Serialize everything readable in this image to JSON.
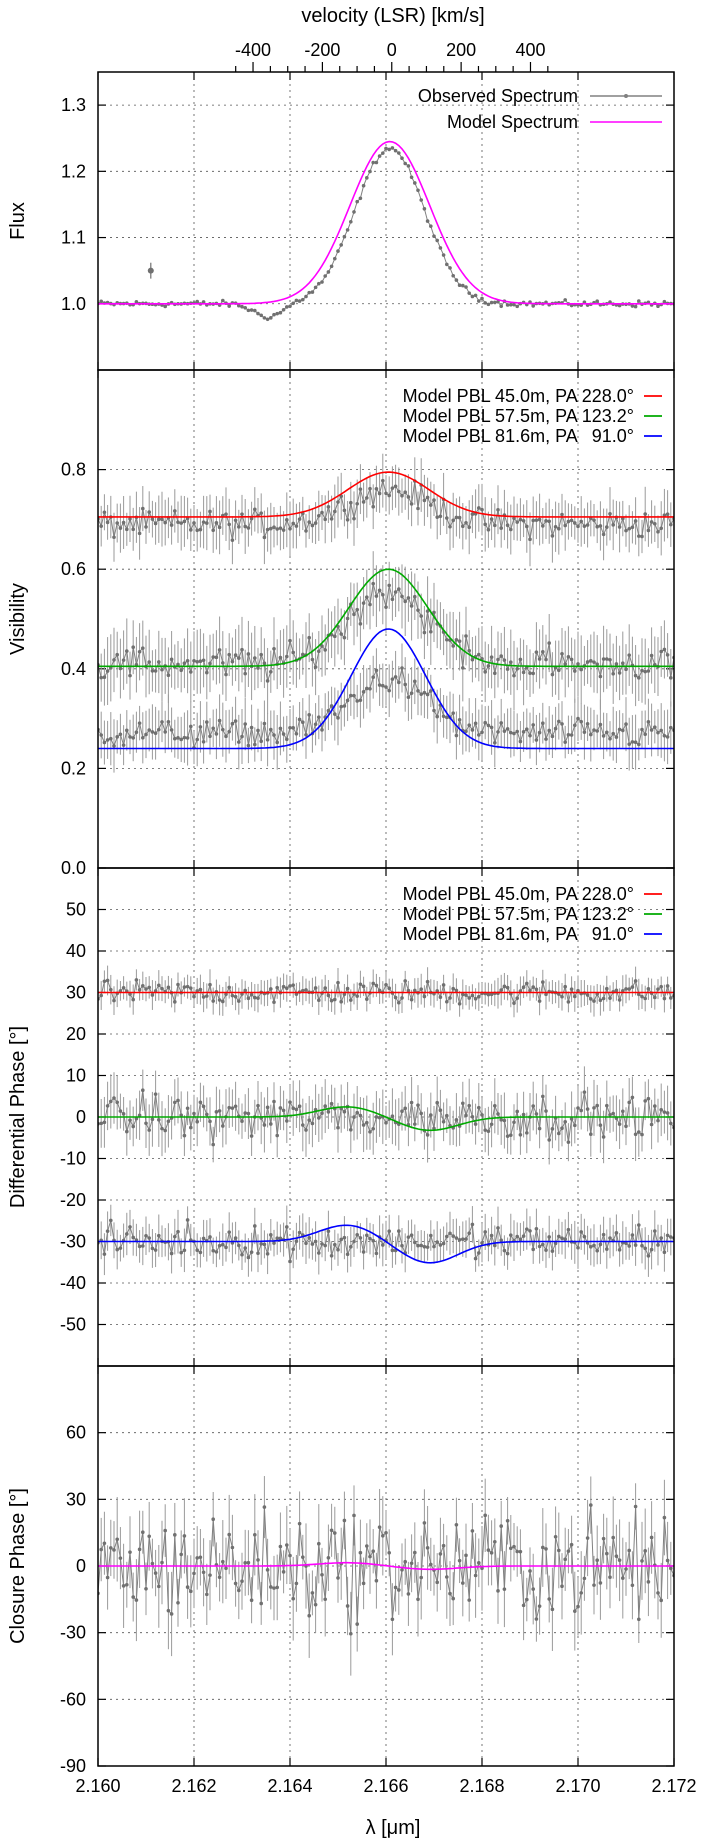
{
  "figure": {
    "top_axis_title": "velocity (LSR) [km/s]",
    "bottom_axis_title": "λ [μm]"
  },
  "chart_data": [
    {
      "id": "flux",
      "type": "line",
      "ylabel": "Flux",
      "xlim": [
        2.16,
        2.172
      ],
      "ylim": [
        0.9,
        1.35
      ],
      "yticks": [
        1.0,
        1.1,
        1.2,
        1.3
      ],
      "ytick_labels": [
        "1.0",
        "1.1",
        "1.2",
        "1.3"
      ],
      "xticks": [
        2.16,
        2.162,
        2.164,
        2.166,
        2.168,
        2.17,
        2.172
      ],
      "top_axis": {
        "label": "velocity (LSR) [km/s]",
        "ticks": [
          -400,
          -200,
          0,
          200,
          400
        ],
        "tick_labels": [
          "-400",
          "-200",
          "0",
          "200",
          "400"
        ],
        "center_wavelength": 2.16612,
        "c_kms": 299792.458
      },
      "grid": true,
      "legend_position": "top-right",
      "error_bar_example": {
        "x": 2.1611,
        "y": 1.05,
        "err": 0.012
      },
      "series": [
        {
          "name": "Observed Spectrum",
          "role": "observed",
          "color": "#808080",
          "profile": {
            "continuum": 1.0,
            "center": 2.16608,
            "amp": 0.235,
            "sigma": 0.00072,
            "dip_center": 2.16355,
            "dip_depth": 0.02,
            "dip_width": 0.0001
          },
          "n_points": 180,
          "noise": 0.004
        },
        {
          "name": "Model Spectrum",
          "role": "model",
          "color": "#ff00ff",
          "profile": {
            "continuum": 1.0,
            "center": 2.16608,
            "amp": 0.245,
            "sigma": 0.00083
          }
        }
      ]
    },
    {
      "id": "visibility",
      "type": "line",
      "ylabel": "Visibility",
      "xlim": [
        2.16,
        2.172
      ],
      "ylim": [
        0.0,
        1.0
      ],
      "yticks": [
        0.0,
        0.2,
        0.4,
        0.6,
        0.8
      ],
      "ytick_labels": [
        "0.0",
        "0.2",
        "0.4",
        "0.6",
        "0.8"
      ],
      "xticks": [
        2.16,
        2.162,
        2.164,
        2.166,
        2.168,
        2.17,
        2.172
      ],
      "grid": true,
      "legend_position": "top-right",
      "series": [
        {
          "name": "Model PBL 45.0m, PA 228.0°",
          "color": "#ff0000",
          "model": {
            "base": 0.705,
            "peak": 0.795,
            "center": 2.16605,
            "sigma": 0.00085
          },
          "observed": {
            "base": 0.69,
            "peak": 0.76,
            "err": 0.04
          }
        },
        {
          "name": "Model PBL 57.5m, PA 123.2°",
          "color": "#00aa00",
          "model": {
            "base": 0.405,
            "peak": 0.6,
            "center": 2.16605,
            "sigma": 0.00082
          },
          "observed": {
            "base": 0.41,
            "peak": 0.56,
            "err": 0.05
          }
        },
        {
          "name": "Model PBL 81.6m, PA   91.0°",
          "color": "#0000ff",
          "model": {
            "base": 0.24,
            "peak": 0.48,
            "center": 2.16605,
            "sigma": 0.00078
          },
          "observed": {
            "base": 0.27,
            "peak": 0.38,
            "err": 0.04
          }
        }
      ]
    },
    {
      "id": "diffphase",
      "type": "line",
      "ylabel": "Differential Phase [°]",
      "xlim": [
        2.16,
        2.172
      ],
      "ylim": [
        -60,
        60
      ],
      "yticks": [
        -50,
        -40,
        -30,
        -20,
        -10,
        0,
        10,
        20,
        30,
        40,
        50
      ],
      "ytick_labels": [
        "-50",
        "-40",
        "-30",
        "-20",
        "-10",
        "0",
        "10",
        "20",
        "30",
        "40",
        "50"
      ],
      "xticks": [
        2.16,
        2.162,
        2.164,
        2.166,
        2.168,
        2.17,
        2.172
      ],
      "grid": true,
      "legend_position": "top-right",
      "series": [
        {
          "name": "Model PBL 45.0m, PA 228.0°",
          "color": "#ff0000",
          "offset": 30,
          "model_amp": 0.0,
          "err": 2.5
        },
        {
          "name": "Model PBL 57.5m, PA 123.2°",
          "color": "#00aa00",
          "offset": 0,
          "model_amp": 2.5,
          "err": 4.5
        },
        {
          "name": "Model PBL 81.6m, PA   91.0°",
          "color": "#0000ff",
          "offset": -30,
          "model_amp": 4.0,
          "err": 3.5
        }
      ]
    },
    {
      "id": "closurephase",
      "type": "line",
      "ylabel": "Closure Phase [°]",
      "xlabel": "λ [μm]",
      "xlim": [
        2.16,
        2.172
      ],
      "ylim": [
        -90,
        90
      ],
      "yticks": [
        -90,
        -60,
        -30,
        0,
        30,
        60
      ],
      "ytick_labels": [
        "-90",
        "-60",
        "-30",
        "0",
        "30",
        "60"
      ],
      "xticks": [
        2.16,
        2.162,
        2.164,
        2.166,
        2.168,
        2.17,
        2.172
      ],
      "xtick_labels": [
        "2.160",
        "2.162",
        "2.164",
        "2.166",
        "2.168",
        "2.170",
        "2.172"
      ],
      "grid": true,
      "series": [
        {
          "name": "",
          "role": "model",
          "color": "#ff00ff",
          "amp": 1.5
        },
        {
          "name": "",
          "role": "observed",
          "color": "#808080",
          "scatter": 22,
          "err": 12
        }
      ]
    }
  ]
}
